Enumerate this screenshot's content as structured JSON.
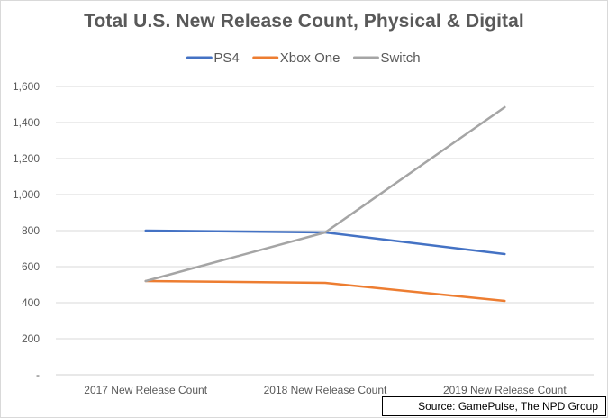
{
  "chart_data": {
    "type": "line",
    "title": "Total U.S. New Release Count, Physical & Digital",
    "xlabel": "",
    "ylabel": "",
    "categories": [
      "2017 New Release Count",
      "2018 New Release Count",
      "2019 New Release Count"
    ],
    "series": [
      {
        "name": "PS4",
        "values": [
          800,
          790,
          670
        ],
        "color": "#4472c4"
      },
      {
        "name": "Xbox One",
        "values": [
          520,
          510,
          410
        ],
        "color": "#ed7d31"
      },
      {
        "name": "Switch",
        "values": [
          520,
          790,
          1485
        ],
        "color": "#a5a5a5"
      }
    ],
    "ylim": [
      0,
      1600
    ],
    "yticks": [
      0,
      200,
      400,
      600,
      800,
      1000,
      1200,
      1400,
      1600
    ],
    "ytick_labels": [
      "-",
      "200",
      "400",
      "600",
      "800",
      "1,000",
      "1,200",
      "1,400",
      "1,600"
    ],
    "grid": true,
    "legend_position": "top"
  },
  "source_text": "Source: GamePulse, The NPD Group"
}
